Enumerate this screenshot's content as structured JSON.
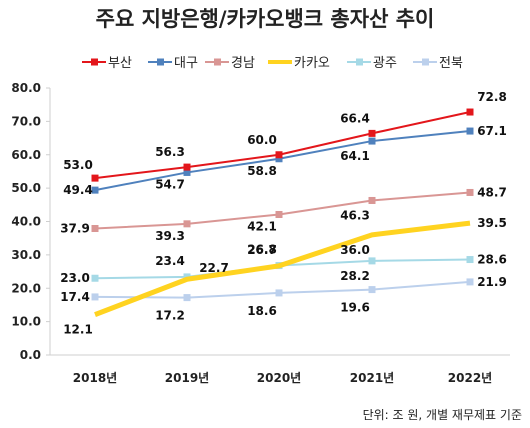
{
  "chart_data": {
    "type": "line",
    "title": "주요 지방은행/카카오뱅크 총자산 추이",
    "note": "단위: 조 원, 개별 재무제표 기준",
    "categories": [
      "2018년",
      "2019년",
      "2020년",
      "2021년",
      "2022년"
    ],
    "ylim": [
      0,
      80
    ],
    "yticks": [
      "0.0",
      "10.0",
      "20.0",
      "30.0",
      "40.0",
      "50.0",
      "60.0",
      "70.0",
      "80.0"
    ],
    "legend_position": "top",
    "series": [
      {
        "name": "부산",
        "color": "#e3161b",
        "values": [
          53.0,
          56.3,
          60.0,
          66.4,
          72.8
        ],
        "labels": [
          "53.0",
          "56.3",
          "60.0",
          "66.4",
          "72.8"
        ]
      },
      {
        "name": "대구",
        "color": "#4f81bd",
        "values": [
          49.4,
          54.7,
          58.8,
          64.1,
          67.1
        ],
        "labels": [
          "49.4",
          "54.7",
          "58.8",
          "64.1",
          "67.1"
        ]
      },
      {
        "name": "경남",
        "color": "#d99694",
        "values": [
          37.9,
          39.3,
          42.1,
          46.3,
          48.7
        ],
        "labels": [
          "37.9",
          "39.3",
          "42.1",
          "46.3",
          "48.7"
        ]
      },
      {
        "name": "카카오",
        "color": "#ffd320",
        "values": [
          12.1,
          22.7,
          26.7,
          36.0,
          39.5
        ],
        "labels": [
          "12.1",
          "22.7",
          "26.7",
          "36.0",
          "39.5"
        ]
      },
      {
        "name": "광주",
        "color": "#a5d9e6",
        "values": [
          23.0,
          23.4,
          26.8,
          28.2,
          28.6
        ],
        "labels": [
          "23.0",
          "23.4",
          "26.8",
          "28.2",
          "28.6"
        ]
      },
      {
        "name": "전북",
        "color": "#bcd0ec",
        "values": [
          17.4,
          17.2,
          18.6,
          19.6,
          21.9
        ],
        "labels": [
          "17.4",
          "17.2",
          "18.6",
          "19.6",
          "21.9"
        ]
      }
    ]
  }
}
